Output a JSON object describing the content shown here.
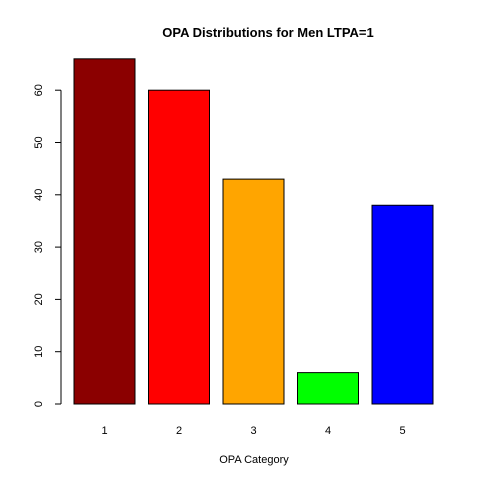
{
  "chart_data": {
    "type": "bar",
    "title": "OPA Distributions for Men LTPA=1",
    "xlabel": "OPA Category",
    "ylabel": "",
    "categories": [
      "1",
      "2",
      "3",
      "4",
      "5"
    ],
    "values": [
      66,
      60,
      43,
      6,
      38
    ],
    "colors": [
      "#8b0000",
      "#ff0000",
      "#ffa500",
      "#00ff00",
      "#0000ff"
    ],
    "ylim": [
      0,
      66
    ],
    "yticks": [
      0,
      10,
      20,
      30,
      40,
      50,
      60
    ],
    "grid": false,
    "legend": "none"
  }
}
